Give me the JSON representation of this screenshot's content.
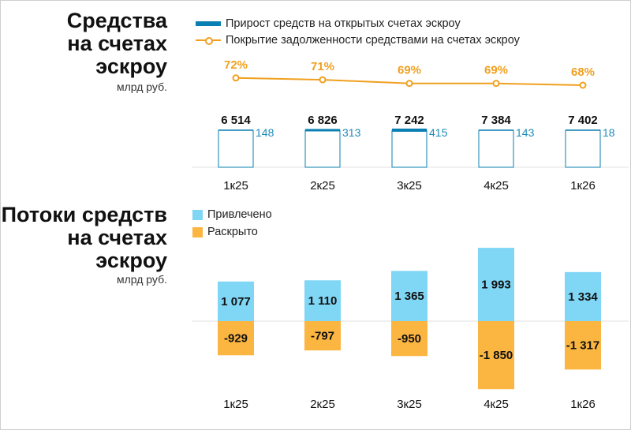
{
  "colors": {
    "escrow_blue": "#0a7fb2",
    "coverage_orange": "#f0a020",
    "raised_blue": "#7fd6f5",
    "disclosed_orange": "#fbb541",
    "growth_text": "#1c8cb8"
  },
  "chart_data": [
    {
      "type": "bar",
      "title": "Средства на счетах эскроу",
      "unit": "млрд руб.",
      "categories": [
        "1к25",
        "2к25",
        "3к25",
        "4к25",
        "1к26"
      ],
      "series": [
        {
          "name": "Прирост средств на открытых счетах эскроу",
          "values": [
            148,
            313,
            415,
            143,
            18
          ],
          "labels": [
            "148",
            "313",
            "415",
            "143",
            "18"
          ]
        },
        {
          "name": "Покрытие задолженности средствами на счетах эскроу",
          "type": "line",
          "values": [
            72,
            71,
            69,
            69,
            68
          ],
          "labels": [
            "72%",
            "71%",
            "69%",
            "69%",
            "68%"
          ]
        }
      ],
      "totals": [
        6514,
        6826,
        7242,
        7384,
        7402
      ],
      "total_labels": [
        "6 514",
        "6 826",
        "7 242",
        "7 384",
        "7 402"
      ]
    },
    {
      "type": "bar",
      "title": "Потоки средств на счетах эскроу",
      "unit": "млрд руб.",
      "categories": [
        "1к25",
        "2к25",
        "3к25",
        "4к25",
        "1к26"
      ],
      "series": [
        {
          "name": "Привлечено",
          "values": [
            1077,
            1110,
            1365,
            1993,
            1334
          ],
          "labels": [
            "1 077",
            "1 110",
            "1 365",
            "1 993",
            "1 334"
          ]
        },
        {
          "name": "Раскрыто",
          "values": [
            -929,
            -797,
            -950,
            -1850,
            -1317
          ],
          "labels": [
            "-929",
            "-797",
            "-950",
            "-1 850",
            "-1 317"
          ]
        }
      ]
    }
  ]
}
